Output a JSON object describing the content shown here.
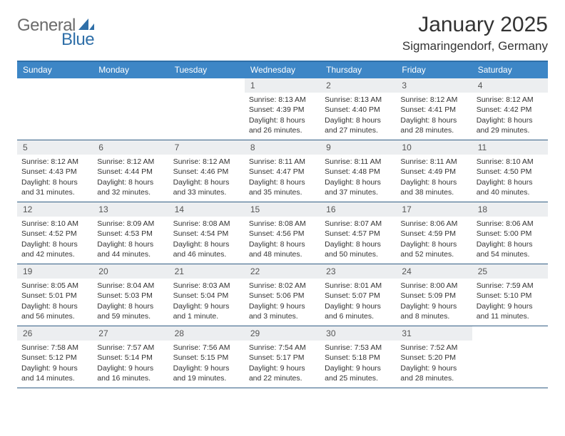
{
  "brand": {
    "general": "General",
    "blue": "Blue"
  },
  "title": "January 2025",
  "location": "Sigmaringendorf, Germany",
  "colors": {
    "header_bar": "#3d86c6",
    "header_border": "#2f6fa8",
    "row_divider": "#335e85",
    "daynum_bg": "#eceef0",
    "text": "#333333",
    "logo_gray": "#6b6b6b",
    "logo_blue": "#2f6fa8"
  },
  "dow": [
    "Sunday",
    "Monday",
    "Tuesday",
    "Wednesday",
    "Thursday",
    "Friday",
    "Saturday"
  ],
  "leading_blanks": 3,
  "days": [
    {
      "n": 1,
      "sunrise": "8:13 AM",
      "sunset": "4:39 PM",
      "daylight": "8 hours and 26 minutes."
    },
    {
      "n": 2,
      "sunrise": "8:13 AM",
      "sunset": "4:40 PM",
      "daylight": "8 hours and 27 minutes."
    },
    {
      "n": 3,
      "sunrise": "8:12 AM",
      "sunset": "4:41 PM",
      "daylight": "8 hours and 28 minutes."
    },
    {
      "n": 4,
      "sunrise": "8:12 AM",
      "sunset": "4:42 PM",
      "daylight": "8 hours and 29 minutes."
    },
    {
      "n": 5,
      "sunrise": "8:12 AM",
      "sunset": "4:43 PM",
      "daylight": "8 hours and 31 minutes."
    },
    {
      "n": 6,
      "sunrise": "8:12 AM",
      "sunset": "4:44 PM",
      "daylight": "8 hours and 32 minutes."
    },
    {
      "n": 7,
      "sunrise": "8:12 AM",
      "sunset": "4:46 PM",
      "daylight": "8 hours and 33 minutes."
    },
    {
      "n": 8,
      "sunrise": "8:11 AM",
      "sunset": "4:47 PM",
      "daylight": "8 hours and 35 minutes."
    },
    {
      "n": 9,
      "sunrise": "8:11 AM",
      "sunset": "4:48 PM",
      "daylight": "8 hours and 37 minutes."
    },
    {
      "n": 10,
      "sunrise": "8:11 AM",
      "sunset": "4:49 PM",
      "daylight": "8 hours and 38 minutes."
    },
    {
      "n": 11,
      "sunrise": "8:10 AM",
      "sunset": "4:50 PM",
      "daylight": "8 hours and 40 minutes."
    },
    {
      "n": 12,
      "sunrise": "8:10 AM",
      "sunset": "4:52 PM",
      "daylight": "8 hours and 42 minutes."
    },
    {
      "n": 13,
      "sunrise": "8:09 AM",
      "sunset": "4:53 PM",
      "daylight": "8 hours and 44 minutes."
    },
    {
      "n": 14,
      "sunrise": "8:08 AM",
      "sunset": "4:54 PM",
      "daylight": "8 hours and 46 minutes."
    },
    {
      "n": 15,
      "sunrise": "8:08 AM",
      "sunset": "4:56 PM",
      "daylight": "8 hours and 48 minutes."
    },
    {
      "n": 16,
      "sunrise": "8:07 AM",
      "sunset": "4:57 PM",
      "daylight": "8 hours and 50 minutes."
    },
    {
      "n": 17,
      "sunrise": "8:06 AM",
      "sunset": "4:59 PM",
      "daylight": "8 hours and 52 minutes."
    },
    {
      "n": 18,
      "sunrise": "8:06 AM",
      "sunset": "5:00 PM",
      "daylight": "8 hours and 54 minutes."
    },
    {
      "n": 19,
      "sunrise": "8:05 AM",
      "sunset": "5:01 PM",
      "daylight": "8 hours and 56 minutes."
    },
    {
      "n": 20,
      "sunrise": "8:04 AM",
      "sunset": "5:03 PM",
      "daylight": "8 hours and 59 minutes."
    },
    {
      "n": 21,
      "sunrise": "8:03 AM",
      "sunset": "5:04 PM",
      "daylight": "9 hours and 1 minute."
    },
    {
      "n": 22,
      "sunrise": "8:02 AM",
      "sunset": "5:06 PM",
      "daylight": "9 hours and 3 minutes."
    },
    {
      "n": 23,
      "sunrise": "8:01 AM",
      "sunset": "5:07 PM",
      "daylight": "9 hours and 6 minutes."
    },
    {
      "n": 24,
      "sunrise": "8:00 AM",
      "sunset": "5:09 PM",
      "daylight": "9 hours and 8 minutes."
    },
    {
      "n": 25,
      "sunrise": "7:59 AM",
      "sunset": "5:10 PM",
      "daylight": "9 hours and 11 minutes."
    },
    {
      "n": 26,
      "sunrise": "7:58 AM",
      "sunset": "5:12 PM",
      "daylight": "9 hours and 14 minutes."
    },
    {
      "n": 27,
      "sunrise": "7:57 AM",
      "sunset": "5:14 PM",
      "daylight": "9 hours and 16 minutes."
    },
    {
      "n": 28,
      "sunrise": "7:56 AM",
      "sunset": "5:15 PM",
      "daylight": "9 hours and 19 minutes."
    },
    {
      "n": 29,
      "sunrise": "7:54 AM",
      "sunset": "5:17 PM",
      "daylight": "9 hours and 22 minutes."
    },
    {
      "n": 30,
      "sunrise": "7:53 AM",
      "sunset": "5:18 PM",
      "daylight": "9 hours and 25 minutes."
    },
    {
      "n": 31,
      "sunrise": "7:52 AM",
      "sunset": "5:20 PM",
      "daylight": "9 hours and 28 minutes."
    }
  ],
  "labels": {
    "sunrise": "Sunrise:",
    "sunset": "Sunset:",
    "daylight": "Daylight:"
  }
}
